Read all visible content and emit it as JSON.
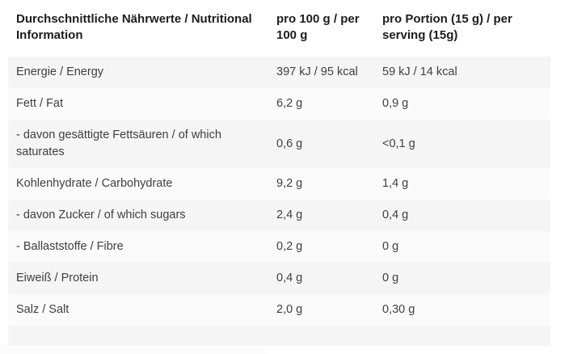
{
  "table": {
    "headers": {
      "nutrient": "Durchschnittliche Nährwerte / Nutritional Information",
      "per_100g": "pro 100 g / per 100 g",
      "per_serving": "pro Portion (15 g) / per serving (15g)"
    },
    "rows": [
      {
        "label": "Energie / Energy",
        "per_100g": "397 kJ / 95 kcal",
        "per_serving": "59 kJ / 14 kcal"
      },
      {
        "label": "Fett / Fat",
        "per_100g": "6,2 g",
        "per_serving": "0,9 g"
      },
      {
        "label": "- davon gesättigte Fettsäuren / of which saturates",
        "per_100g": "0,6 g",
        "per_serving": "<0,1 g"
      },
      {
        "label": "Kohlenhydrate / Carbohydrate",
        "per_100g": "9,2 g",
        "per_serving": "1,4 g"
      },
      {
        "label": "- davon Zucker / of which sugars",
        "per_100g": "2,4 g",
        "per_serving": "0,4 g"
      },
      {
        "label": "- Ballaststoffe / Fibre",
        "per_100g": "0,2 g",
        "per_serving": "0 g"
      },
      {
        "label": "Eiweiß / Protein",
        "per_100g": "0,4 g",
        "per_serving": "0 g"
      },
      {
        "label": "Salz / Salt",
        "per_100g": "2,0 g",
        "per_serving": "0,30 g"
      }
    ],
    "colors": {
      "stripe": "#f5f5f5",
      "stripe_light": "#fbfbfb",
      "header_text": "#1c1c1c",
      "body_text": "#3f3f3f"
    }
  }
}
